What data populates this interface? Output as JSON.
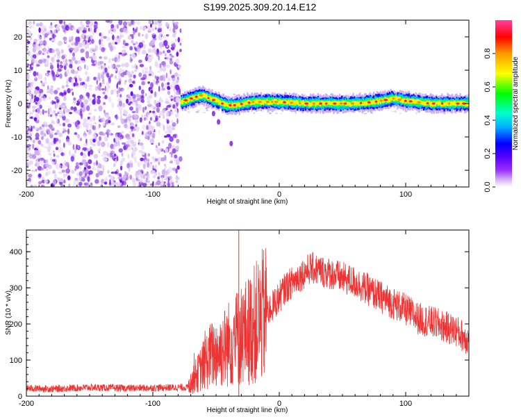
{
  "figure_title": "S199.2025.309.20.14.E12",
  "chart_data": [
    {
      "type": "heatmap",
      "title": "S199.2025.309.20.14.E12",
      "xlabel": "Height of straight line (km)",
      "ylabel": "Frequency (Hz)",
      "xlim": [
        -200,
        150
      ],
      "ylim": [
        -25,
        25
      ],
      "xticks": [
        -200,
        -100,
        0,
        100
      ],
      "yticks": [
        -20,
        -10,
        0,
        10,
        20
      ],
      "xtick_labels": [
        "-200",
        "-100",
        "0",
        "100"
      ],
      "ytick_labels": [
        "-20",
        "-10",
        "0",
        "10",
        "20"
      ],
      "noise_region_x": [
        -200,
        -78
      ],
      "signal_start_x": -78,
      "signal_ridge": [
        {
          "x": -78,
          "y": 0.5
        },
        {
          "x": -70,
          "y": 1.5
        },
        {
          "x": -62,
          "y": 2.5
        },
        {
          "x": -55,
          "y": 1.5
        },
        {
          "x": -48,
          "y": 0.5
        },
        {
          "x": -42,
          "y": -0.5
        },
        {
          "x": -35,
          "y": -0.5
        },
        {
          "x": -28,
          "y": 0.0
        },
        {
          "x": -20,
          "y": 0.5
        },
        {
          "x": -10,
          "y": 0.5
        },
        {
          "x": 0,
          "y": 0.5
        },
        {
          "x": 20,
          "y": 0.0
        },
        {
          "x": 40,
          "y": 0.0
        },
        {
          "x": 60,
          "y": 0.0
        },
        {
          "x": 75,
          "y": 0.5
        },
        {
          "x": 90,
          "y": 1.5
        },
        {
          "x": 100,
          "y": 0.8
        },
        {
          "x": 120,
          "y": 0.0
        },
        {
          "x": 150,
          "y": 0.0
        }
      ],
      "side_fragments": [
        {
          "x": -52,
          "y": -3.0
        },
        {
          "x": -48,
          "y": -5.5
        },
        {
          "x": -38,
          "y": -12.0
        }
      ],
      "grid": false
    },
    {
      "type": "colorbar",
      "label": "Normalized spectral amplitude",
      "range": [
        0.0,
        1.0
      ],
      "ticks": [
        0.0,
        0.2,
        0.4,
        0.6,
        0.8
      ],
      "tick_labels": [
        "0.0",
        "0.2",
        "0.4",
        "0.6",
        "0.8"
      ],
      "colors": [
        "#ffffff",
        "#d8b8f0",
        "#9b30ff",
        "#5500ff",
        "#0000ff",
        "#00b0ff",
        "#00ffcc",
        "#00ff00",
        "#ffff00",
        "#ff9900",
        "#ff0000",
        "#ff40a0"
      ]
    },
    {
      "type": "line",
      "title": "",
      "xlabel": "Height of straight line (km)",
      "ylabel": "SNR (10 * v/v)",
      "xlim": [
        -200,
        150
      ],
      "ylim": [
        0,
        460
      ],
      "xticks": [
        -200,
        -100,
        0,
        100
      ],
      "yticks": [
        0,
        100,
        200,
        300,
        400
      ],
      "xtick_labels": [
        "-200",
        "-100",
        "0",
        "100"
      ],
      "ytick_labels": [
        "0",
        "100",
        "200",
        "300",
        "400"
      ],
      "series": [
        {
          "name": "SNR",
          "color": "#ee3333",
          "x": [
            -200,
            -180,
            -150,
            -120,
            -100,
            -80,
            -72,
            -65,
            -55,
            -45,
            -35,
            -25,
            -15,
            -5,
            5,
            15,
            25,
            40,
            60,
            80,
            100,
            110,
            125,
            140,
            150
          ],
          "y": [
            22,
            20,
            24,
            22,
            23,
            24,
            24,
            60,
            110,
            130,
            160,
            180,
            215,
            250,
            300,
            330,
            355,
            340,
            315,
            275,
            240,
            215,
            200,
            180,
            155
          ],
          "spike": {
            "x": -32,
            "y": 460
          },
          "grid": false
        }
      ]
    }
  ]
}
